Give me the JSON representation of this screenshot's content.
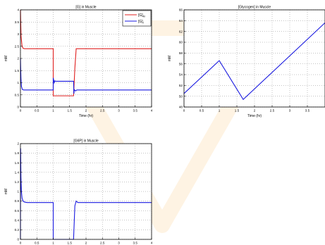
{
  "watermark": {
    "color": "#f5a623"
  },
  "chart_data": [
    {
      "id": "c1",
      "type": "line",
      "title": "[G] in Muscle",
      "xlabel": "Time (hr)",
      "ylabel": "mM",
      "xlim": [
        0,
        4
      ],
      "ylim": [
        0,
        4
      ],
      "xticks": [
        "0",
        "0.5",
        "1",
        "1.5",
        "2",
        "2.5",
        "3",
        "3.5",
        "4"
      ],
      "yticks": [
        "0",
        "0.5",
        "1",
        "1.5",
        "2",
        "2.5",
        "3",
        "3.5",
        "4"
      ],
      "grid": true,
      "legend_position": "top-right",
      "series": [
        {
          "name": "[G]",
          "legend_subscript": "M",
          "color": "#e02020",
          "x": [
            0,
            0.008,
            0.02,
            0.05,
            0.08,
            0.12,
            1.0,
            1.0,
            1.62,
            1.66,
            1.7,
            2.0,
            3.0,
            4.0
          ],
          "y": [
            4.0,
            3.5,
            2.9,
            2.5,
            2.42,
            2.4,
            2.4,
            0.46,
            0.46,
            1.6,
            2.4,
            2.4,
            2.4,
            2.4
          ]
        },
        {
          "name": "[G]",
          "legend_subscript": "I",
          "color": "#1a1ae0",
          "x": [
            0,
            0.005,
            0.015,
            0.03,
            0.06,
            0.1,
            0.2,
            1.0,
            1.0,
            1.03,
            1.05,
            1.07,
            1.62,
            1.63,
            1.64,
            1.68,
            1.72,
            2.0,
            3.0,
            4.0
          ],
          "y": [
            2.0,
            1.7,
            1.2,
            0.85,
            0.72,
            0.7,
            0.7,
            0.7,
            1.2,
            1.0,
            1.08,
            1.06,
            1.06,
            0.55,
            0.72,
            0.66,
            0.7,
            0.7,
            0.7,
            0.7
          ]
        }
      ]
    },
    {
      "id": "c2",
      "type": "line",
      "title": "[Glycogen] in Muscle",
      "xlabel": "Time (hr)",
      "ylabel": "mM",
      "xlim": [
        0,
        4
      ],
      "ylim": [
        48,
        66
      ],
      "xticks": [
        "0",
        "0.5",
        "1",
        "1.5",
        "2",
        "2.5",
        "3",
        "3.5"
      ],
      "yticks": [
        "48",
        "50",
        "52",
        "54",
        "56",
        "58",
        "60",
        "62",
        "64",
        "66"
      ],
      "grid": true,
      "series": [
        {
          "color": "#1a1ae0",
          "x": [
            0,
            1.0,
            1.68,
            4.0
          ],
          "y": [
            50.5,
            56.6,
            49.4,
            63.6
          ]
        }
      ]
    },
    {
      "id": "c3",
      "type": "line",
      "title": "[G6P] in Muscle",
      "xlabel": "",
      "ylabel": "mM",
      "xlim": [
        0,
        4
      ],
      "ylim": [
        0,
        2
      ],
      "xticks": [
        "0",
        "0.5",
        "1",
        "1.5",
        "2",
        "2.5",
        "3",
        "3.5",
        "4"
      ],
      "yticks": [
        "0",
        "0.2",
        "0.4",
        "0.6",
        "0.8",
        "1",
        "1.2",
        "1.4",
        "1.6",
        "1.8",
        "2"
      ],
      "grid": true,
      "series": [
        {
          "color": "#1a1ae0",
          "x": [
            0,
            0.005,
            0.015,
            0.03,
            0.05,
            0.08,
            0.12,
            0.2,
            1.0,
            1.0,
            1.62,
            1.64,
            1.66,
            1.7,
            1.75,
            2.0,
            3.0,
            4.0
          ],
          "y": [
            0.0,
            1.9,
            1.3,
            1.0,
            0.86,
            0.8,
            0.78,
            0.77,
            0.77,
            0.0,
            0.0,
            0.35,
            0.7,
            0.8,
            0.77,
            0.77,
            0.77,
            0.77
          ]
        }
      ]
    }
  ]
}
